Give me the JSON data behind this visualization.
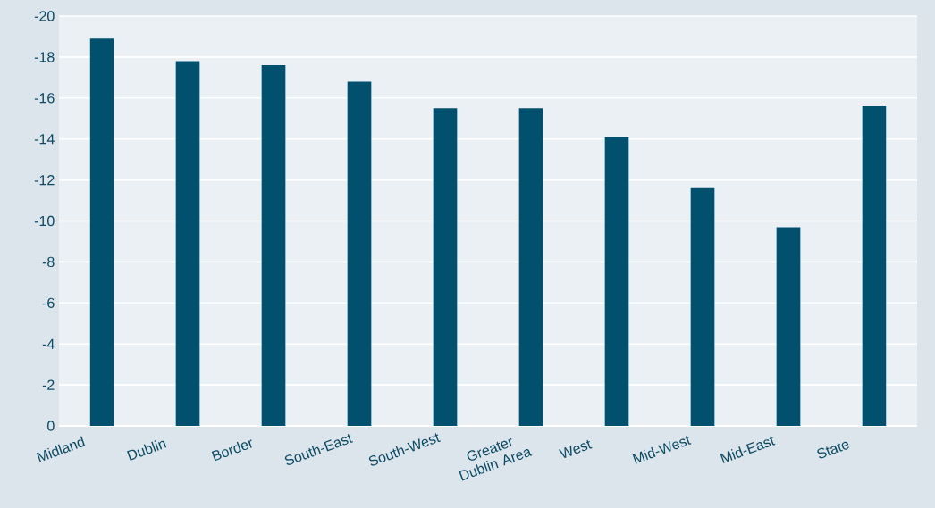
{
  "chart_data": {
    "type": "bar",
    "categories": [
      "Midland",
      "Dublin",
      "Border",
      "South-East",
      "South-West",
      "Greater Dublin Area",
      "West",
      "Mid-West",
      "Mid-East",
      "State"
    ],
    "values": [
      -18.9,
      -17.8,
      -17.6,
      -16.8,
      -15.5,
      -15.5,
      -14.1,
      -11.6,
      -9.7,
      -15.6
    ],
    "color": "#00506e",
    "ylim": [
      0,
      -20
    ],
    "yticks": [
      0,
      -2,
      -4,
      -6,
      -8,
      -10,
      -12,
      -14,
      -16,
      -18,
      -20
    ],
    "grid": "y"
  }
}
